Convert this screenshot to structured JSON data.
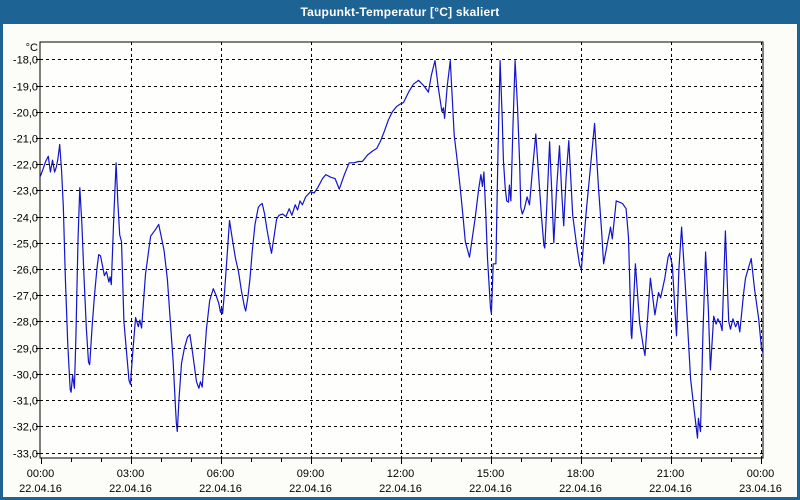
{
  "window": {
    "title": "Taupunkt-Temperatur [°C] skaliert"
  },
  "colors": {
    "titlebar_bg": "#1d6394",
    "titlebar_text": "#ffffff",
    "frame": "#1d6394",
    "content_bg": "#fcfcf8",
    "plot_bg": "#fefefc",
    "grid": "#000000",
    "axis": "#000000",
    "label": "#000000",
    "line": "#1414cc"
  },
  "chart_data": {
    "type": "line",
    "title": "Taupunkt-Temperatur [°C] skaliert",
    "y_unit_label": "°C",
    "grid": "dashed",
    "legend": "none",
    "ylim": [
      -33.2,
      -17.35
    ],
    "xlim_hours": [
      0,
      24.1
    ],
    "x_minor_tick_hours": 1,
    "y_ticks": [
      {
        "v": -18,
        "label": "-18,0"
      },
      {
        "v": -19,
        "label": "-19,0"
      },
      {
        "v": -20,
        "label": "-20,0"
      },
      {
        "v": -21,
        "label": "-21,0"
      },
      {
        "v": -22,
        "label": "-22,0"
      },
      {
        "v": -23,
        "label": "-23,0"
      },
      {
        "v": -24,
        "label": "-24,0"
      },
      {
        "v": -25,
        "label": "-25,0"
      },
      {
        "v": -26,
        "label": "-26,0"
      },
      {
        "v": -27,
        "label": "-27,0"
      },
      {
        "v": -28,
        "label": "-28,0"
      },
      {
        "v": -29,
        "label": "-29,0"
      },
      {
        "v": -30,
        "label": "-30,0"
      },
      {
        "v": -31,
        "label": "-31,0"
      },
      {
        "v": -32,
        "label": "-32,0"
      },
      {
        "v": -33,
        "label": "-33,0"
      }
    ],
    "x_major_ticks": [
      {
        "hour": 0,
        "time": "00:00",
        "date": "22.04.16"
      },
      {
        "hour": 3,
        "time": "03:00",
        "date": "22.04.16"
      },
      {
        "hour": 6,
        "time": "06:00",
        "date": "22.04.16"
      },
      {
        "hour": 9,
        "time": "09:00",
        "date": "22.04.16"
      },
      {
        "hour": 12,
        "time": "12:00",
        "date": "22.04.16"
      },
      {
        "hour": 15,
        "time": "15:00",
        "date": "22.04.16"
      },
      {
        "hour": 18,
        "time": "18:00",
        "date": "22.04.16"
      },
      {
        "hour": 21,
        "time": "21:00",
        "date": "22.04.16"
      },
      {
        "hour": 24,
        "time": "00:00",
        "date": "23.04.16"
      }
    ],
    "series": [
      {
        "name": "Taupunkt-Temperatur",
        "points": [
          [
            0.0,
            -22.45
          ],
          [
            0.08,
            -22.2
          ],
          [
            0.17,
            -21.9
          ],
          [
            0.26,
            -21.7
          ],
          [
            0.33,
            -22.3
          ],
          [
            0.4,
            -21.85
          ],
          [
            0.47,
            -22.3
          ],
          [
            0.53,
            -22.1
          ],
          [
            0.58,
            -21.8
          ],
          [
            0.64,
            -21.25
          ],
          [
            0.7,
            -22.2
          ],
          [
            0.76,
            -23.6
          ],
          [
            0.83,
            -26.4
          ],
          [
            0.91,
            -28.9
          ],
          [
            0.99,
            -30.6
          ],
          [
            1.02,
            -30.7
          ],
          [
            1.07,
            -30.05
          ],
          [
            1.13,
            -30.55
          ],
          [
            1.18,
            -28.6
          ],
          [
            1.25,
            -24.9
          ],
          [
            1.31,
            -22.9
          ],
          [
            1.38,
            -24.3
          ],
          [
            1.45,
            -26.3
          ],
          [
            1.53,
            -28.3
          ],
          [
            1.6,
            -29.55
          ],
          [
            1.64,
            -29.65
          ],
          [
            1.72,
            -28.2
          ],
          [
            1.8,
            -27.0
          ],
          [
            1.88,
            -26.0
          ],
          [
            1.94,
            -25.45
          ],
          [
            2.0,
            -25.5
          ],
          [
            2.07,
            -25.9
          ],
          [
            2.13,
            -26.25
          ],
          [
            2.2,
            -26.1
          ],
          [
            2.28,
            -26.5
          ],
          [
            2.32,
            -26.3
          ],
          [
            2.36,
            -26.6
          ],
          [
            2.44,
            -24.1
          ],
          [
            2.52,
            -21.95
          ],
          [
            2.58,
            -23.5
          ],
          [
            2.64,
            -24.7
          ],
          [
            2.7,
            -24.95
          ],
          [
            2.78,
            -28.0
          ],
          [
            2.87,
            -29.2
          ],
          [
            2.95,
            -30.25
          ],
          [
            3.0,
            -30.4
          ],
          [
            3.06,
            -29.4
          ],
          [
            3.17,
            -27.85
          ],
          [
            3.26,
            -28.2
          ],
          [
            3.31,
            -27.95
          ],
          [
            3.37,
            -28.25
          ],
          [
            3.5,
            -26.2
          ],
          [
            3.67,
            -24.75
          ],
          [
            3.83,
            -24.5
          ],
          [
            3.94,
            -24.3
          ],
          [
            4.05,
            -24.9
          ],
          [
            4.12,
            -25.3
          ],
          [
            4.23,
            -26.4
          ],
          [
            4.34,
            -28.2
          ],
          [
            4.42,
            -29.5
          ],
          [
            4.5,
            -31.3
          ],
          [
            4.53,
            -31.9
          ],
          [
            4.56,
            -32.2
          ],
          [
            4.62,
            -30.9
          ],
          [
            4.7,
            -29.6
          ],
          [
            4.8,
            -29.0
          ],
          [
            4.9,
            -28.6
          ],
          [
            4.98,
            -28.5
          ],
          [
            5.07,
            -29.2
          ],
          [
            5.2,
            -30.3
          ],
          [
            5.28,
            -30.55
          ],
          [
            5.33,
            -30.3
          ],
          [
            5.39,
            -30.5
          ],
          [
            5.47,
            -29.3
          ],
          [
            5.53,
            -28.3
          ],
          [
            5.64,
            -27.2
          ],
          [
            5.76,
            -26.75
          ],
          [
            5.85,
            -27.0
          ],
          [
            5.94,
            -27.3
          ],
          [
            6.0,
            -27.65
          ],
          [
            6.04,
            -27.5
          ],
          [
            6.07,
            -27.7
          ],
          [
            6.14,
            -26.8
          ],
          [
            6.22,
            -25.5
          ],
          [
            6.3,
            -24.15
          ],
          [
            6.4,
            -24.9
          ],
          [
            6.5,
            -25.6
          ],
          [
            6.6,
            -26.1
          ],
          [
            6.7,
            -26.85
          ],
          [
            6.8,
            -27.45
          ],
          [
            6.84,
            -27.6
          ],
          [
            6.91,
            -27.1
          ],
          [
            6.98,
            -26.4
          ],
          [
            7.06,
            -25.3
          ],
          [
            7.15,
            -24.3
          ],
          [
            7.26,
            -23.65
          ],
          [
            7.33,
            -23.55
          ],
          [
            7.39,
            -23.5
          ],
          [
            7.47,
            -23.9
          ],
          [
            7.55,
            -24.5
          ],
          [
            7.63,
            -25.0
          ],
          [
            7.7,
            -25.4
          ],
          [
            7.78,
            -24.8
          ],
          [
            7.87,
            -24.1
          ],
          [
            7.95,
            -23.95
          ],
          [
            8.07,
            -23.9
          ],
          [
            8.18,
            -24.0
          ],
          [
            8.29,
            -23.7
          ],
          [
            8.38,
            -23.95
          ],
          [
            8.49,
            -23.55
          ],
          [
            8.57,
            -23.75
          ],
          [
            8.65,
            -23.4
          ],
          [
            8.73,
            -23.55
          ],
          [
            8.84,
            -23.25
          ],
          [
            9.0,
            -23.05
          ],
          [
            9.12,
            -23.1
          ],
          [
            9.24,
            -22.9
          ],
          [
            9.4,
            -22.55
          ],
          [
            9.51,
            -22.4
          ],
          [
            9.68,
            -22.5
          ],
          [
            9.82,
            -22.55
          ],
          [
            9.96,
            -22.95
          ],
          [
            10.13,
            -22.4
          ],
          [
            10.29,
            -21.95
          ],
          [
            10.45,
            -21.95
          ],
          [
            10.6,
            -21.9
          ],
          [
            10.73,
            -21.9
          ],
          [
            10.9,
            -21.65
          ],
          [
            11.07,
            -21.5
          ],
          [
            11.21,
            -21.4
          ],
          [
            11.34,
            -21.1
          ],
          [
            11.46,
            -20.75
          ],
          [
            11.6,
            -20.3
          ],
          [
            11.73,
            -20.0
          ],
          [
            11.87,
            -19.8
          ],
          [
            12.0,
            -19.7
          ],
          [
            12.1,
            -19.65
          ],
          [
            12.27,
            -19.25
          ],
          [
            12.43,
            -18.95
          ],
          [
            12.6,
            -18.8
          ],
          [
            12.77,
            -19.0
          ],
          [
            12.93,
            -19.25
          ],
          [
            13.03,
            -18.6
          ],
          [
            13.15,
            -18.05
          ],
          [
            13.25,
            -19.0
          ],
          [
            13.38,
            -20.0
          ],
          [
            13.43,
            -19.85
          ],
          [
            13.47,
            -20.25
          ],
          [
            13.56,
            -19.0
          ],
          [
            13.66,
            -18.05
          ],
          [
            13.79,
            -20.9
          ],
          [
            13.9,
            -21.95
          ],
          [
            13.99,
            -22.9
          ],
          [
            14.08,
            -23.95
          ],
          [
            14.16,
            -24.95
          ],
          [
            14.3,
            -25.55
          ],
          [
            14.49,
            -24.05
          ],
          [
            14.6,
            -23.0
          ],
          [
            14.68,
            -22.4
          ],
          [
            14.73,
            -22.85
          ],
          [
            14.78,
            -22.3
          ],
          [
            14.84,
            -23.8
          ],
          [
            14.9,
            -25.6
          ],
          [
            14.94,
            -26.35
          ],
          [
            15.0,
            -27.5
          ],
          [
            15.03,
            -27.7
          ],
          [
            15.09,
            -25.8
          ],
          [
            15.18,
            -25.8
          ],
          [
            15.25,
            -21.5
          ],
          [
            15.32,
            -18.05
          ],
          [
            15.39,
            -20.2
          ],
          [
            15.43,
            -21.85
          ],
          [
            15.49,
            -22.9
          ],
          [
            15.54,
            -23.4
          ],
          [
            15.6,
            -23.45
          ],
          [
            15.63,
            -22.8
          ],
          [
            15.68,
            -23.4
          ],
          [
            15.75,
            -20.5
          ],
          [
            15.82,
            -18.05
          ],
          [
            15.9,
            -19.8
          ],
          [
            15.97,
            -21.9
          ],
          [
            16.01,
            -23.65
          ],
          [
            16.06,
            -23.9
          ],
          [
            16.13,
            -23.7
          ],
          [
            16.22,
            -23.25
          ],
          [
            16.3,
            -23.55
          ],
          [
            16.4,
            -22.2
          ],
          [
            16.51,
            -20.85
          ],
          [
            16.63,
            -22.85
          ],
          [
            16.7,
            -24.0
          ],
          [
            16.78,
            -25.1
          ],
          [
            16.81,
            -25.2
          ],
          [
            16.9,
            -23.0
          ],
          [
            16.97,
            -21.15
          ],
          [
            17.04,
            -23.0
          ],
          [
            17.11,
            -25.0
          ],
          [
            17.2,
            -23.0
          ],
          [
            17.3,
            -21.3
          ],
          [
            17.37,
            -23.0
          ],
          [
            17.44,
            -24.35
          ],
          [
            17.52,
            -22.5
          ],
          [
            17.61,
            -21.1
          ],
          [
            17.74,
            -23.95
          ],
          [
            17.86,
            -25.0
          ],
          [
            17.97,
            -25.85
          ],
          [
            18.03,
            -26.0
          ],
          [
            18.2,
            -23.7
          ],
          [
            18.37,
            -21.65
          ],
          [
            18.47,
            -20.45
          ],
          [
            18.6,
            -22.9
          ],
          [
            18.7,
            -24.5
          ],
          [
            18.77,
            -25.8
          ],
          [
            18.9,
            -25.0
          ],
          [
            18.97,
            -24.6
          ],
          [
            19.0,
            -24.4
          ],
          [
            19.06,
            -24.85
          ],
          [
            19.19,
            -23.4
          ],
          [
            19.3,
            -23.45
          ],
          [
            19.4,
            -23.5
          ],
          [
            19.52,
            -23.7
          ],
          [
            19.6,
            -24.8
          ],
          [
            19.69,
            -28.5
          ],
          [
            19.71,
            -28.65
          ],
          [
            19.83,
            -25.8
          ],
          [
            19.97,
            -28.05
          ],
          [
            20.1,
            -29.0
          ],
          [
            20.15,
            -29.3
          ],
          [
            20.33,
            -26.35
          ],
          [
            20.48,
            -27.75
          ],
          [
            20.6,
            -26.9
          ],
          [
            20.67,
            -27.1
          ],
          [
            20.81,
            -26.35
          ],
          [
            20.92,
            -25.55
          ],
          [
            20.97,
            -25.4
          ],
          [
            21.06,
            -25.85
          ],
          [
            21.2,
            -28.55
          ],
          [
            21.28,
            -26.0
          ],
          [
            21.37,
            -24.4
          ],
          [
            21.5,
            -26.75
          ],
          [
            21.67,
            -30.2
          ],
          [
            21.78,
            -31.3
          ],
          [
            21.9,
            -32.45
          ],
          [
            21.93,
            -31.7
          ],
          [
            22.0,
            -32.2
          ],
          [
            22.08,
            -28.5
          ],
          [
            22.17,
            -25.35
          ],
          [
            22.26,
            -27.5
          ],
          [
            22.33,
            -29.85
          ],
          [
            22.44,
            -27.8
          ],
          [
            22.52,
            -28.1
          ],
          [
            22.58,
            -27.9
          ],
          [
            22.67,
            -28.1
          ],
          [
            22.72,
            -28.35
          ],
          [
            22.83,
            -24.55
          ],
          [
            22.94,
            -28.0
          ],
          [
            23.0,
            -28.3
          ],
          [
            23.08,
            -27.9
          ],
          [
            23.17,
            -28.2
          ],
          [
            23.25,
            -28.0
          ],
          [
            23.31,
            -28.4
          ],
          [
            23.44,
            -26.9
          ],
          [
            23.5,
            -26.35
          ],
          [
            23.69,
            -25.6
          ],
          [
            23.8,
            -26.75
          ],
          [
            23.94,
            -27.9
          ],
          [
            24.03,
            -29.0
          ],
          [
            24.08,
            -29.2
          ]
        ]
      }
    ]
  }
}
